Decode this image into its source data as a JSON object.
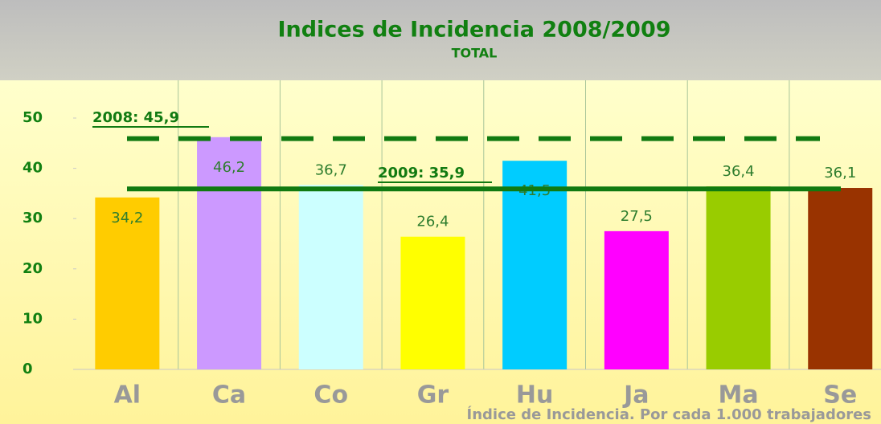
{
  "chart_data": {
    "type": "bar",
    "title": "Indices de Incidencia 2008/2009",
    "subtitle": "TOTAL",
    "annotation": "Índice de Incidencia. Por cada 1.000 trabajadores",
    "categories": [
      "Al",
      "Ca",
      "Co",
      "Gr",
      "Hu",
      "Ja",
      "Ma",
      "Se"
    ],
    "values": [
      34.2,
      46.2,
      36.7,
      26.4,
      41.5,
      27.5,
      36.4,
      36.1
    ],
    "value_labels": [
      "34,2",
      "46,2",
      "36,7",
      "26,4",
      "41,5",
      "27,5",
      "36,4",
      "36,1"
    ],
    "colors": [
      "#ffcc00",
      "#cc99ff",
      "#ccffff",
      "#ffff00",
      "#00ccff",
      "#ff00ff",
      "#99cc00",
      "#993300"
    ],
    "reference_lines": [
      {
        "label": "2008: 45,9",
        "value": 45.9,
        "style": "dashed",
        "color": "#117a11"
      },
      {
        "label": "2009: 35,9",
        "value": 35.9,
        "style": "solid",
        "color": "#117a11"
      }
    ],
    "ylim": [
      0,
      55
    ],
    "yticks": [
      0,
      10,
      20,
      30,
      40,
      50
    ],
    "grid": true
  }
}
